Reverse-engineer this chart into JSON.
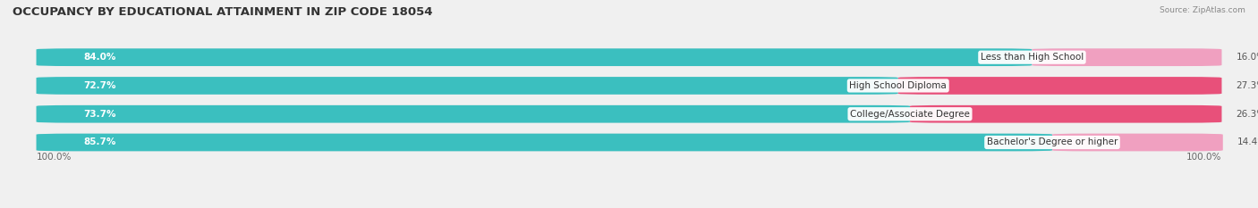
{
  "title": "OCCUPANCY BY EDUCATIONAL ATTAINMENT IN ZIP CODE 18054",
  "source": "Source: ZipAtlas.com",
  "categories": [
    "Less than High School",
    "High School Diploma",
    "College/Associate Degree",
    "Bachelor's Degree or higher"
  ],
  "owner_pct": [
    84.0,
    72.7,
    73.7,
    85.7
  ],
  "renter_pct": [
    16.0,
    27.3,
    26.3,
    14.4
  ],
  "owner_color": "#3bbfbf",
  "renter_color_row0": "#f0a0c0",
  "renter_color_row1": "#e8507a",
  "renter_color_row2": "#e8507a",
  "renter_color_row3": "#f0a0c0",
  "owner_color_light": "#b0e8e8",
  "renter_color_light": "#f5d0e0",
  "bg_color": "#f0f0f0",
  "bar_row_bg": "#e0e0e0",
  "bar_height": 0.62,
  "axis_label_left": "100.0%",
  "axis_label_right": "100.0%",
  "title_fontsize": 9.5,
  "label_fontsize": 7.5,
  "pct_fontsize": 7.5,
  "legend_fontsize": 8,
  "cat_fontsize": 7.5
}
